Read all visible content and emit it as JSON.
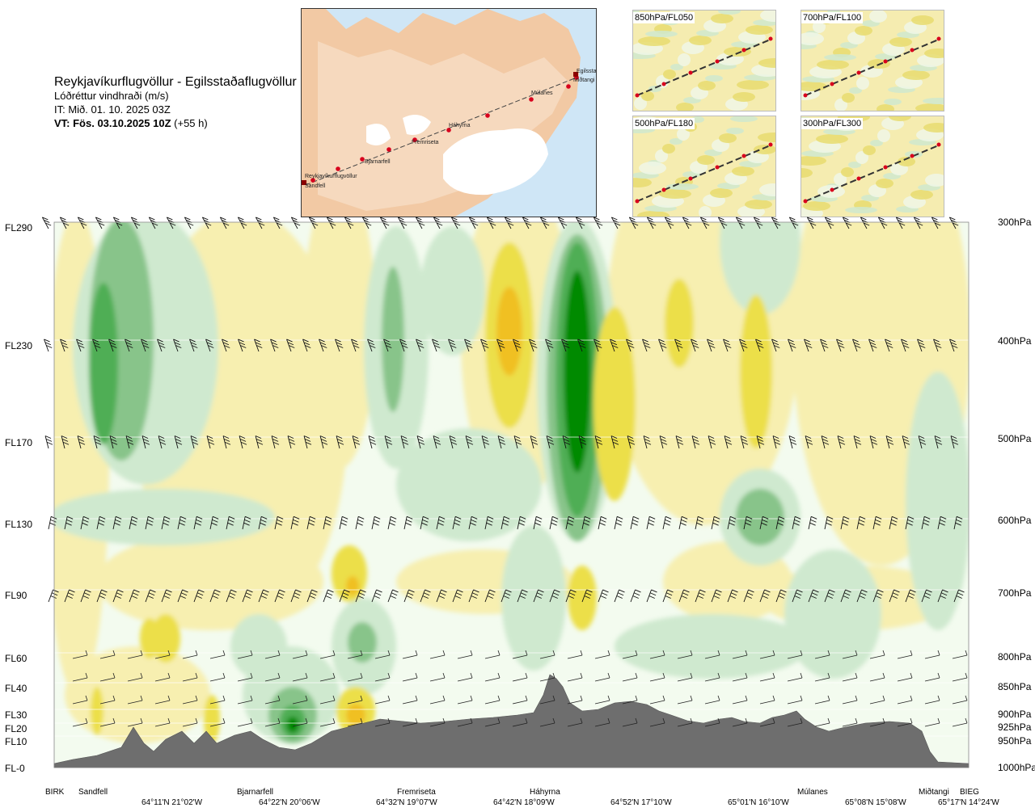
{
  "title": {
    "route": "Reykjavíkurflugvöllur - Egilsstaðaflugvöllur",
    "variable": "Lóðréttur vindhraði (m/s)",
    "issue": "IT: Mið. 01. 10. 2025 03Z",
    "valid": "VT: Fös. 03.10.2025 10Z",
    "valid_lead": "(+55 h)"
  },
  "overview_map": {
    "places": [
      "Reykjavíkurflugvöllur",
      "Sandfell",
      "Bjarnarfell",
      "Fremriseta",
      "Háhyrna",
      "Múlanes",
      "Egilssta",
      "Miðtangi"
    ]
  },
  "mini_maps": [
    {
      "label": "850hPa/FL050"
    },
    {
      "label": "700hPa/FL100"
    },
    {
      "label": "500hPa/FL180"
    },
    {
      "label": "300hPa/FL300"
    }
  ],
  "left_axis_labels": [
    "FL290",
    "FL230",
    "FL170",
    "FL130",
    "FL90",
    "FL60",
    "FL40",
    "FL30",
    "FL20",
    "FL10",
    "FL-0"
  ],
  "right_axis_labels": [
    "300hPa",
    "400hPa",
    "500hPa",
    "600hPa",
    "700hPa",
    "800hPa",
    "850hPa",
    "900hPa",
    "925hPa",
    "950hPa",
    "1000hPa"
  ],
  "stations": [
    "BIRK",
    "Sandfell",
    "Bjarnarfell",
    "Fremriseta",
    "Háhyrna",
    "Múlanes",
    "Miðtangi",
    "BIEG"
  ],
  "coords": [
    "64°11'N 21°02'W",
    "64°22'N 20°06'W",
    "64°32'N 19°07'W",
    "64°42'N 18°09'W",
    "64°52'N 17°10'W",
    "65°01'N 16°10'W",
    "65°08'N 15°08'W",
    "65°17'N 14°24'W"
  ],
  "colors": {
    "strong_down": "#008a00",
    "down_2": "#4fae55",
    "down_3": "#88c48a",
    "weak_down": "#cfe9cf",
    "near_zero": "#f3fbef",
    "weak_up": "#f7efb0",
    "up_2": "#ecdf4a",
    "strong_up": "#f0c020",
    "terrain": "#6e6e6e"
  },
  "chart_data": {
    "type": "heatmap",
    "variable": "vertical wind speed (m/s)",
    "x": [
      "BIRK",
      "Sandfell",
      "Bjarnarfell",
      "Fremriseta",
      "Háhyrna",
      "Múlanes",
      "Miðtangi",
      "BIEG"
    ],
    "y_levels_hpa": [
      1000,
      950,
      925,
      900,
      850,
      800,
      700,
      600,
      500,
      400,
      300
    ],
    "features": [
      {
        "kind": "strong descent core",
        "near": "Háhyrna",
        "levels_hpa": [
          600,
          350
        ]
      },
      {
        "kind": "ascent",
        "near": "Fremriseta-Háhyrna",
        "levels_hpa": [
          500,
          330
        ]
      },
      {
        "kind": "descent",
        "near": "Sandfell",
        "levels_hpa": [
          550,
          300
        ]
      },
      {
        "kind": "low-level descent",
        "near": "Bjarnarfell",
        "levels_hpa": [
          925,
          850
        ]
      },
      {
        "kind": "low-level ascent",
        "near": "Bjarnarfell-Fremriseta",
        "levels_hpa": [
          950,
          850
        ]
      }
    ]
  }
}
